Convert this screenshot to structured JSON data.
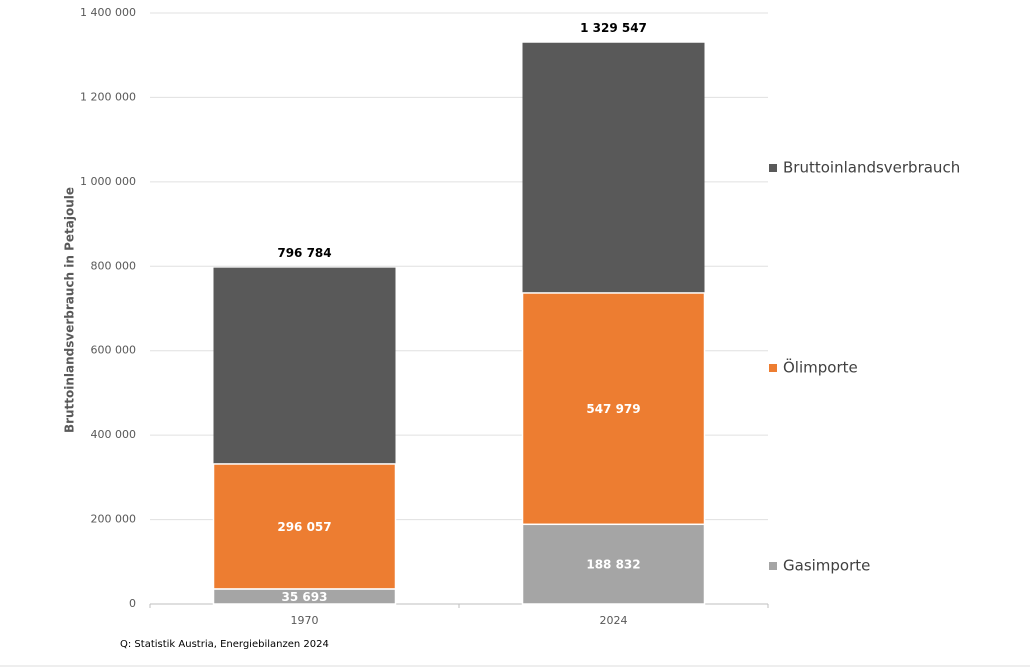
{
  "chart_data": {
    "type": "bar",
    "y_label": "Bruttoinlandsverbrauch in Petajoule",
    "source": "Q: Statistik Austria, Energiebilanzen 2024",
    "categories": [
      "1970",
      "2024"
    ],
    "series": [
      {
        "name": "Gasimporte",
        "color": "#a5a5a5",
        "values": [
          35693,
          188832
        ],
        "value_labels": [
          "35 693",
          "188 832"
        ]
      },
      {
        "name": "Ölimporte",
        "color": "#ed7d31",
        "values": [
          296057,
          547979
        ],
        "value_labels": [
          "296 057",
          "547 979"
        ]
      },
      {
        "name": "Bruttoinlandsverbrauch",
        "color": "#595959",
        "values": [
          796784,
          1329547
        ],
        "value_labels": [
          "796 784",
          "1 329 547"
        ]
      }
    ],
    "ylim": [
      0,
      1400000
    ],
    "yticks": [
      0,
      {
        "value": 200000,
        "label": "200 000"
      },
      {
        "value": 400000,
        "label": "400 000"
      },
      {
        "value": 600000,
        "label": "600 000"
      },
      {
        "value": 800000,
        "label": "800 000"
      },
      {
        "value": 1000000,
        "label": "1 000 000"
      },
      {
        "value": 1200000,
        "label": "1 200 000"
      },
      {
        "value": 1400000,
        "label": "1 400 000"
      }
    ],
    "grid": true
  }
}
